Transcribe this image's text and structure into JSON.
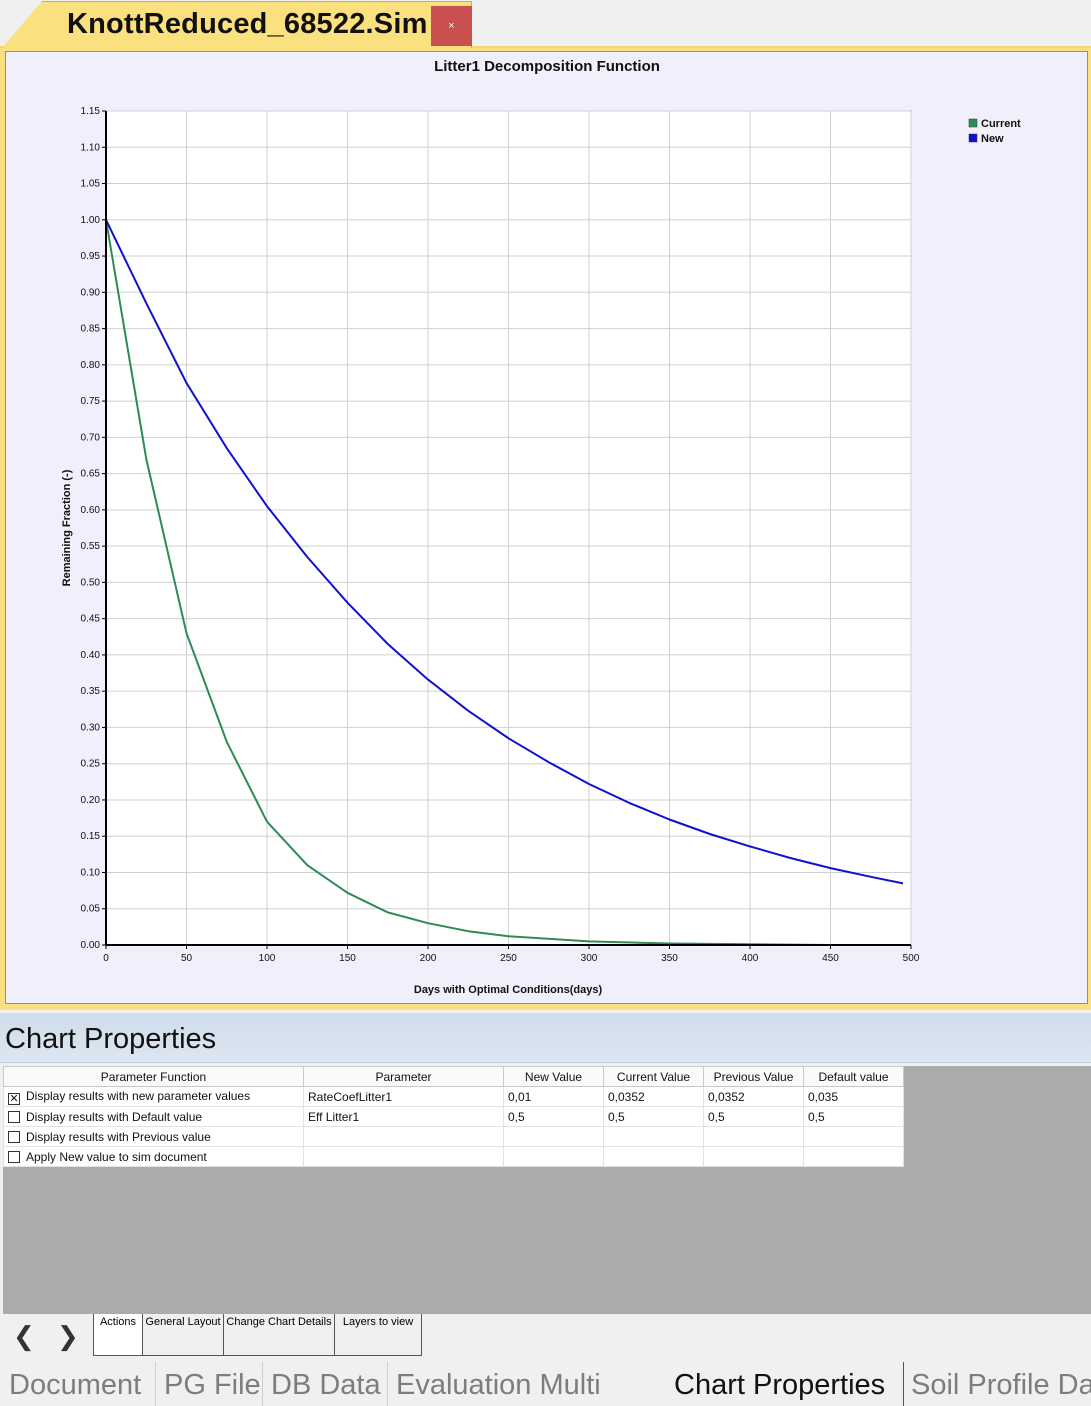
{
  "window": {
    "document_tab_title": "KnottReduced_68522.Sim",
    "close_glyph": "×",
    "accent_color": "#fbe07f",
    "close_color": "#c9504f"
  },
  "chart_data": {
    "type": "line",
    "title": "Litter1 Decomposition Function",
    "xlabel": "Days with Optimal Conditions(days)",
    "ylabel": "Remaining Fraction (-)",
    "xlim": [
      0,
      500
    ],
    "ylim": [
      0,
      1.15
    ],
    "xticks": [
      0,
      50,
      100,
      150,
      200,
      250,
      300,
      350,
      400,
      450,
      500
    ],
    "yticks": [
      "0.00",
      "0.05",
      "0.10",
      "0.15",
      "0.20",
      "0.25",
      "0.30",
      "0.35",
      "0.40",
      "0.45",
      "0.50",
      "0.55",
      "0.60",
      "0.65",
      "0.70",
      "0.75",
      "0.80",
      "0.85",
      "0.90",
      "0.95",
      "1.00",
      "1.05",
      "1.10",
      "1.15"
    ],
    "grid": true,
    "legend": "top-right",
    "series": [
      {
        "name": "Current",
        "color": "#2e8b57",
        "x": [
          0,
          25,
          50,
          75,
          100,
          125,
          150,
          175,
          200,
          225,
          250,
          300,
          350,
          400,
          450,
          495
        ],
        "y": [
          1.0,
          0.67,
          0.43,
          0.28,
          0.17,
          0.11,
          0.072,
          0.045,
          0.03,
          0.019,
          0.012,
          0.005,
          0.002,
          0.001,
          0.0,
          0.0
        ]
      },
      {
        "name": "New",
        "color": "#1010d0",
        "x": [
          0,
          25,
          50,
          75,
          100,
          125,
          150,
          175,
          200,
          225,
          250,
          275,
          300,
          325,
          350,
          375,
          400,
          425,
          450,
          475,
          495
        ],
        "y": [
          1.0,
          0.885,
          0.775,
          0.685,
          0.605,
          0.535,
          0.472,
          0.415,
          0.366,
          0.323,
          0.285,
          0.252,
          0.222,
          0.196,
          0.173,
          0.153,
          0.136,
          0.12,
          0.106,
          0.094,
          0.085
        ]
      }
    ]
  },
  "chart_properties": {
    "title": "Chart Properties",
    "columns": [
      "Parameter Function",
      "Parameter",
      "New Value",
      "Current Value",
      "Previous Value",
      "Default value"
    ],
    "rows": [
      {
        "checked": true,
        "function": "Display results with new parameter values",
        "parameter": "RateCoefLitter1",
        "new": "0,01",
        "current": "0,0352",
        "previous": "0,0352",
        "default": "0,035"
      },
      {
        "checked": false,
        "function": "Display results with Default value",
        "parameter": "Eff Litter1",
        "new": "0,5",
        "current": "0,5",
        "previous": "0,5",
        "default": "0,5"
      },
      {
        "checked": false,
        "function": "Display results with Previous value",
        "parameter": "",
        "new": "",
        "current": "",
        "previous": "",
        "default": ""
      },
      {
        "checked": false,
        "function": "Apply New value to sim document",
        "parameter": "",
        "new": "",
        "current": "",
        "previous": "",
        "default": ""
      }
    ],
    "check_glyph": "✕"
  },
  "sub_tabs": {
    "prev_glyph": "❮",
    "next_glyph": "❯",
    "items": [
      "Actions",
      "General Layout",
      "Change Chart Details",
      "Layers to view"
    ],
    "active": "Actions"
  },
  "bottom_tabs": {
    "items": [
      "Document",
      "PG File",
      "DB Data",
      "Evaluation Multi",
      "Chart Properties",
      "Soil Profile Da"
    ],
    "active": "Chart Properties"
  }
}
